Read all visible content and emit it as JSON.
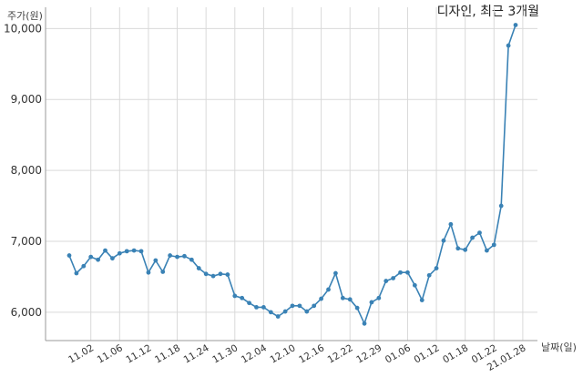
{
  "chart_data": {
    "type": "line",
    "title": "디자인, 최근 3개월",
    "ylabel": "주가(원)",
    "xlabel": "날짜(일)",
    "ylim": [
      5600,
      10300
    ],
    "yticks": [
      6000,
      7000,
      8000,
      9000,
      10000
    ],
    "ytick_labels": [
      "6,000",
      "7,000",
      "8,000",
      "9,000",
      "10,000"
    ],
    "xtick_labels": [
      "11.02",
      "11.06",
      "11.12",
      "11.18",
      "11.24",
      "11.30",
      "12.04",
      "12.10",
      "12.16",
      "12.22",
      "12.29",
      "01.06",
      "01.12",
      "01.18",
      "01.22",
      "21.01.28"
    ],
    "xtick_positions": [
      3,
      7,
      11,
      15,
      19,
      23,
      27,
      31,
      35,
      39,
      43,
      47,
      51,
      55,
      59,
      63
    ],
    "grid": true,
    "line_color": "#3a82b5",
    "series": [
      {
        "values": [
          6800,
          6550,
          6650,
          6780,
          6740,
          6870,
          6760,
          6830,
          6860,
          6870,
          6860,
          6560,
          6730,
          6570,
          6800,
          6780,
          6790,
          6740,
          6620,
          6540,
          6510,
          6540,
          6530,
          6230,
          6200,
          6130,
          6070,
          6070,
          6000,
          5940,
          6010,
          6090,
          6090,
          6010,
          6090,
          6190,
          6320,
          6550,
          6200,
          6180,
          6060,
          5840,
          6140,
          6200,
          6440,
          6480,
          6560,
          6560,
          6380,
          6170,
          6520,
          6620,
          7010,
          7240,
          6900,
          6880,
          7050,
          7120,
          6870,
          6950,
          7500,
          9760,
          10050
        ]
      }
    ]
  }
}
